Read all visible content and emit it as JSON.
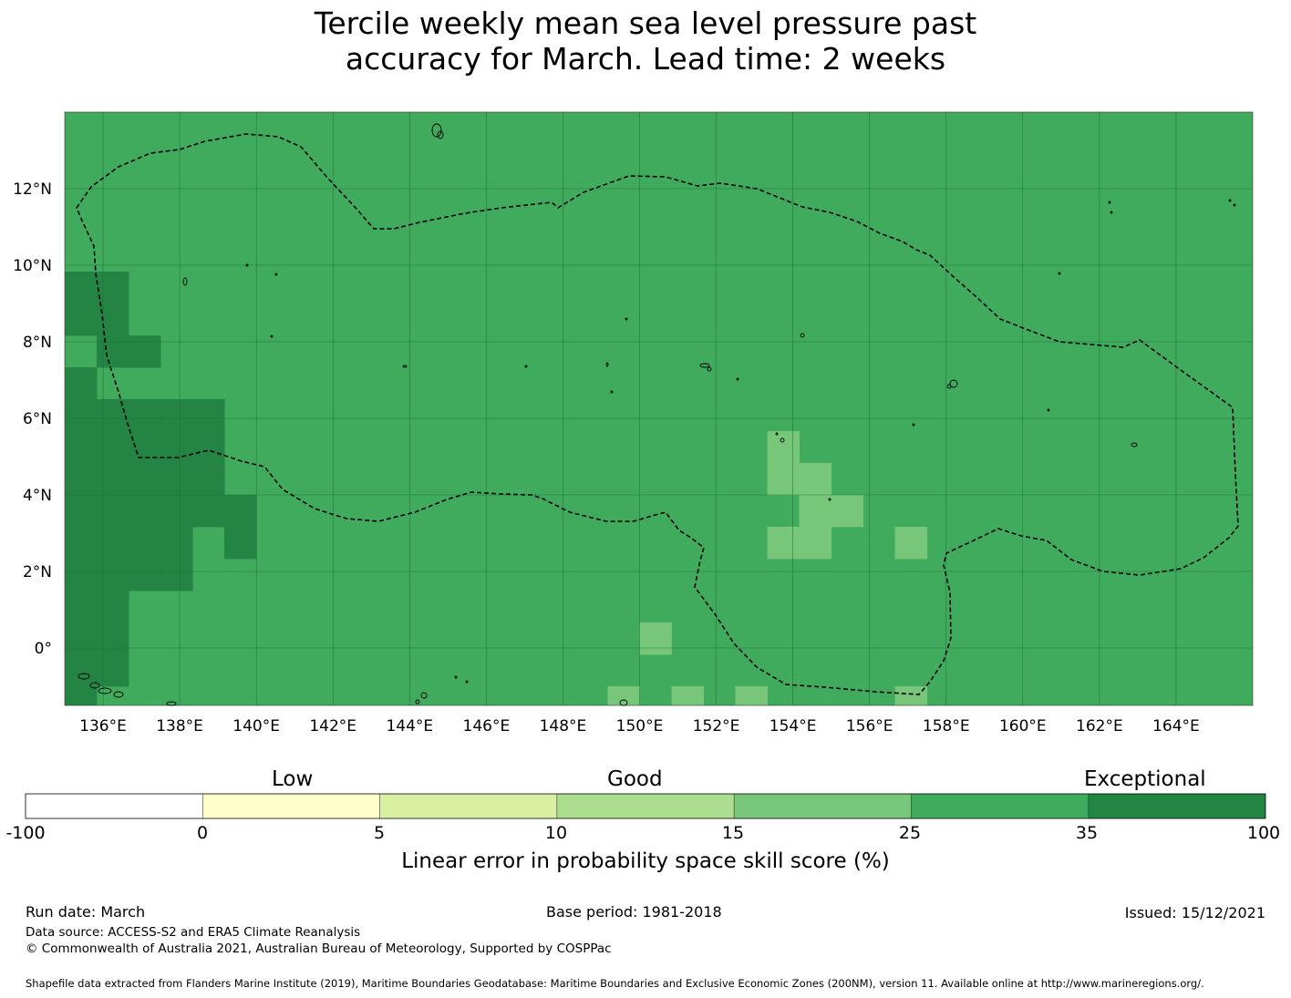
{
  "title": {
    "line1": "Tercile weekly mean sea level pressure past",
    "line2": "accuracy for March. Lead time: 2 weeks"
  },
  "map": {
    "lon_range": [
      135,
      166
    ],
    "lat_range": [
      -1.5,
      14
    ],
    "grid_step_deg": 0.8333,
    "lon_ticks": [
      {
        "value": 136,
        "label": "136°E"
      },
      {
        "value": 138,
        "label": "138°E"
      },
      {
        "value": 140,
        "label": "140°E"
      },
      {
        "value": 142,
        "label": "142°E"
      },
      {
        "value": 144,
        "label": "144°E"
      },
      {
        "value": 146,
        "label": "146°E"
      },
      {
        "value": 148,
        "label": "148°E"
      },
      {
        "value": 150,
        "label": "150°E"
      },
      {
        "value": 152,
        "label": "152°E"
      },
      {
        "value": 154,
        "label": "154°E"
      },
      {
        "value": 156,
        "label": "156°E"
      },
      {
        "value": 158,
        "label": "158°E"
      },
      {
        "value": 160,
        "label": "160°E"
      },
      {
        "value": 162,
        "label": "162°E"
      },
      {
        "value": 164,
        "label": "164°E"
      }
    ],
    "lat_ticks": [
      {
        "value": 12,
        "label": "12°N"
      },
      {
        "value": 10,
        "label": "10°N"
      },
      {
        "value": 8,
        "label": "8°N"
      },
      {
        "value": 6,
        "label": "6°N"
      },
      {
        "value": 4,
        "label": "4°N"
      },
      {
        "value": 2,
        "label": "2°N"
      },
      {
        "value": 0,
        "label": "0°"
      }
    ],
    "background_color": "#41ab5d",
    "exceptional_cells": [
      [
        0,
        5
      ],
      [
        0,
        6
      ],
      [
        0,
        8
      ],
      [
        0,
        9
      ],
      [
        0,
        10
      ],
      [
        0,
        11
      ],
      [
        0,
        12
      ],
      [
        0,
        13
      ],
      [
        0,
        14
      ],
      [
        0,
        15
      ],
      [
        0,
        16
      ],
      [
        0,
        17
      ],
      [
        0,
        18
      ],
      [
        0,
        19
      ],
      [
        0,
        20
      ],
      [
        0,
        21
      ],
      [
        0,
        22
      ],
      [
        0,
        23
      ],
      [
        0,
        24
      ],
      [
        0,
        26
      ],
      [
        0,
        27
      ],
      [
        1,
        5
      ],
      [
        1,
        6
      ],
      [
        1,
        7
      ],
      [
        1,
        9
      ],
      [
        1,
        10
      ],
      [
        1,
        11
      ],
      [
        1,
        12
      ],
      [
        1,
        13
      ],
      [
        1,
        14
      ],
      [
        1,
        15
      ],
      [
        1,
        16
      ],
      [
        1,
        17
      ],
      [
        1,
        22
      ],
      [
        1,
        23
      ],
      [
        1,
        24
      ],
      [
        1,
        25
      ],
      [
        1,
        26
      ],
      [
        1,
        27
      ],
      [
        2,
        7
      ],
      [
        2,
        9
      ],
      [
        2,
        10
      ],
      [
        2,
        11
      ],
      [
        2,
        12
      ],
      [
        2,
        13
      ],
      [
        2,
        14
      ],
      [
        2,
        23
      ],
      [
        2,
        24
      ],
      [
        2,
        25
      ],
      [
        2,
        26
      ],
      [
        2,
        27
      ],
      [
        3,
        9
      ],
      [
        3,
        10
      ],
      [
        3,
        11
      ],
      [
        3,
        12
      ],
      [
        3,
        13
      ],
      [
        3,
        14
      ],
      [
        3,
        23
      ],
      [
        3,
        24
      ],
      [
        3,
        25
      ],
      [
        3,
        26
      ],
      [
        3,
        27
      ],
      [
        4,
        9
      ],
      [
        4,
        10
      ],
      [
        4,
        11
      ],
      [
        4,
        12
      ],
      [
        4,
        21
      ],
      [
        4,
        22
      ],
      [
        4,
        23
      ],
      [
        4,
        24
      ],
      [
        4,
        26
      ],
      [
        5,
        12
      ],
      [
        5,
        13
      ],
      [
        5,
        21
      ],
      [
        5,
        22
      ]
    ],
    "good_cells": [
      [
        22,
        10
      ],
      [
        22,
        11
      ],
      [
        23,
        11
      ],
      [
        23,
        12
      ],
      [
        24,
        12
      ],
      [
        22,
        13
      ],
      [
        23,
        13
      ],
      [
        26,
        13
      ],
      [
        18,
        16
      ],
      [
        17,
        18
      ],
      [
        19,
        18
      ],
      [
        21,
        18
      ],
      [
        26,
        18
      ],
      [
        25,
        19
      ],
      [
        26,
        19
      ],
      [
        19,
        20
      ],
      [
        26,
        20
      ],
      [
        26,
        21
      ],
      [
        27,
        21
      ],
      [
        25,
        22
      ],
      [
        29,
        23
      ],
      [
        26,
        24
      ],
      [
        23,
        25
      ],
      [
        24,
        25
      ],
      [
        25,
        25
      ],
      [
        26,
        25
      ],
      [
        27,
        25
      ],
      [
        22,
        26
      ],
      [
        23,
        26
      ],
      [
        24,
        26
      ],
      [
        25,
        26
      ],
      [
        26,
        26
      ]
    ],
    "colors": {
      "good": "#78c679",
      "exceptional": "#238443",
      "boundary": "#000000",
      "gridline": "#1a6b35"
    }
  },
  "colorbar": {
    "categories": [
      {
        "label": "Low",
        "between": [
          0,
          5
        ]
      },
      {
        "label": "Good",
        "between": [
          10,
          15
        ]
      },
      {
        "label": "Exceptional",
        "between": [
          35,
          100
        ]
      }
    ],
    "bins": [
      {
        "from": -100,
        "to": 0,
        "color": "#ffffff"
      },
      {
        "from": 0,
        "to": 5,
        "color": "#ffffcc"
      },
      {
        "from": 5,
        "to": 10,
        "color": "#d9f0a3"
      },
      {
        "from": 10,
        "to": 15,
        "color": "#addd8e"
      },
      {
        "from": 15,
        "to": 25,
        "color": "#78c679"
      },
      {
        "from": 25,
        "to": 35,
        "color": "#41ab5d"
      },
      {
        "from": 35,
        "to": 100,
        "color": "#238443"
      }
    ],
    "tick_labels": [
      "-100",
      "0",
      "5",
      "10",
      "15",
      "25",
      "35",
      "100"
    ],
    "title": "Linear error in probability space skill score (%)"
  },
  "footer": {
    "run_date": "Run date: March",
    "base_period": "Base period: 1981-2018",
    "issued": "Issued: 15/12/2021",
    "data_source": "Data source: ACCESS-S2 and ERA5 Climate Reanalysis",
    "copyright": "© Commonwealth of Australia 2021, Australian Bureau of Meteorology, Supported by COSPPac",
    "shapefile_note": "Shapefile data extracted from Flanders Marine Institute (2019), Maritime Boundaries Geodatabase: Maritime Boundaries and Exclusive Economic Zones (200NM), version 11. Available online at http://www.marineregions.org/."
  }
}
